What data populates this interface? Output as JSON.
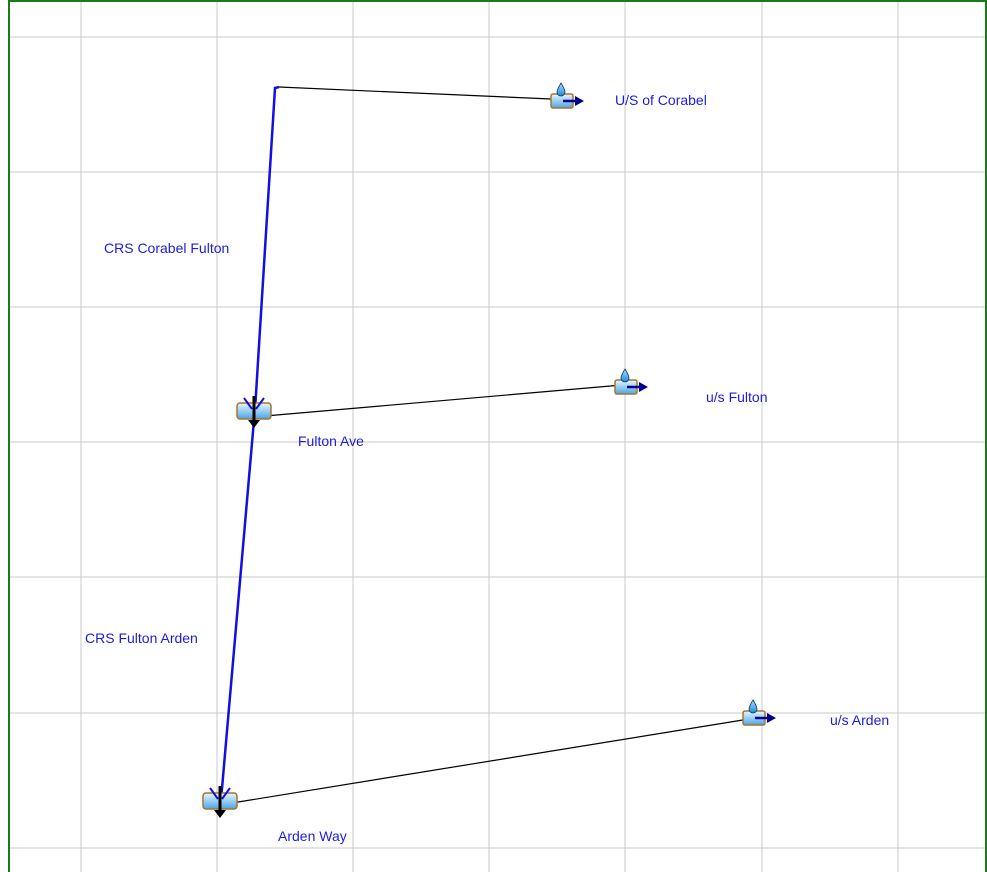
{
  "colors": {
    "background": "#ffffff",
    "frame": "#1a7a1a",
    "grid": "#c8c8c8",
    "reach": "#1010e0",
    "connector": "#000000",
    "label": "#1c1ce0"
  },
  "network": {
    "subbasins": [
      {
        "id": "us_corabel",
        "label": "U/S of Corabel",
        "icon": "subbasin-icon"
      },
      {
        "id": "us_fulton",
        "label": "u/s Fulton",
        "icon": "subbasin-icon"
      },
      {
        "id": "us_arden",
        "label": "u/s Arden",
        "icon": "subbasin-icon"
      }
    ],
    "junctions": [
      {
        "id": "fulton_ave",
        "label": "Fulton Ave",
        "icon": "junction-icon"
      },
      {
        "id": "arden_way",
        "label": "Arden Way",
        "icon": "junction-icon"
      }
    ],
    "reaches": [
      {
        "id": "crs_corabel_fulton",
        "label": "CRS Corabel Fulton",
        "from": "us_corabel",
        "to": "fulton_ave"
      },
      {
        "id": "crs_fulton_arden",
        "label": "CRS Fulton Arden",
        "from": "fulton_ave",
        "to": "arden_way"
      }
    ],
    "connectors": [
      {
        "from": "us_corabel",
        "to": "crs_corabel_fulton"
      },
      {
        "from": "us_fulton",
        "to": "fulton_ave"
      },
      {
        "from": "us_arden",
        "to": "arden_way"
      }
    ]
  }
}
